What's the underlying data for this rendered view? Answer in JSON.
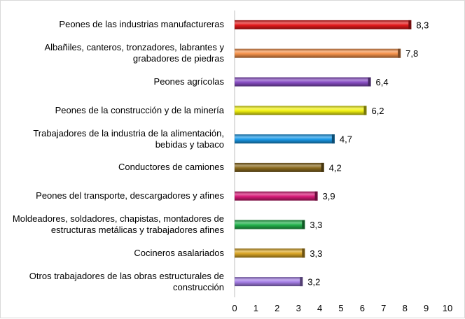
{
  "chart_data": {
    "type": "bar",
    "orientation": "horizontal",
    "categories": [
      "Peones de las industrias manufactureras",
      "Albañiles, canteros, tronzadores, labrantes y grabadores de piedras",
      "Peones agrícolas",
      "Peones de la construcción y de la minería",
      "Trabajadores de la industria de la alimentación, bebidas y tabaco",
      "Conductores de camiones",
      "Peones del transporte, descargadores y afines",
      "Moldeadores, soldadores, chapistas, montadores de estructuras metálicas y trabajadores afines",
      "Cocineros asalariados",
      "Otros trabajadores de las obras estructurales de construcción"
    ],
    "category_lines": [
      [
        "Peones de las industrias manufactureras"
      ],
      [
        "Albañiles, canteros, tronzadores, labrantes y",
        "grabadores de piedras"
      ],
      [
        "Peones agrícolas"
      ],
      [
        "Peones de la construcción y de la minería"
      ],
      [
        "Trabajadores de la industria de la alimentación,",
        "bebidas y tabaco"
      ],
      [
        "Conductores de camiones"
      ],
      [
        "Peones del transporte, descargadores y afines"
      ],
      [
        "Moldeadores, soldadores, chapistas, montadores de",
        "estructuras metálicas y trabajadores afines"
      ],
      [
        "Cocineros asalariados"
      ],
      [
        "Otros trabajadores de las obras estructurales de",
        "construcción"
      ]
    ],
    "values": [
      8.3,
      7.8,
      6.4,
      6.2,
      4.7,
      4.2,
      3.9,
      3.3,
      3.3,
      3.2
    ],
    "value_labels": [
      "8,3",
      "7,8",
      "6,4",
      "6,2",
      "4,7",
      "4,2",
      "3,9",
      "3,3",
      "3,3",
      "3,2"
    ],
    "colors": [
      "#e31a1c",
      "#f4914a",
      "#8a4fc6",
      "#f3f312",
      "#1a9ae8",
      "#8a6a1e",
      "#d81b78",
      "#22b24c",
      "#d9a526",
      "#a57fe6"
    ],
    "xlim": [
      0,
      10
    ],
    "x_ticks": [
      0,
      1,
      2,
      3,
      4,
      5,
      6,
      7,
      8,
      9,
      10
    ],
    "grid": false,
    "title": "",
    "xlabel": "",
    "ylabel": ""
  }
}
